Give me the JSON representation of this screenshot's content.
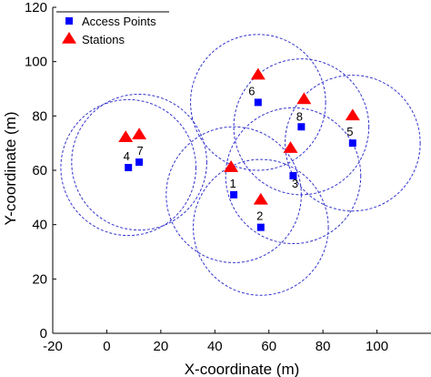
{
  "chart_data": {
    "type": "scatter",
    "xlabel": "X-coordinate (m)",
    "ylabel": "Y-coordinate (m)",
    "xlim": [
      -20,
      120
    ],
    "ylim": [
      0,
      120
    ],
    "xticks": [
      -20,
      0,
      20,
      40,
      60,
      80,
      100
    ],
    "yticks": [
      0,
      20,
      40,
      60,
      80,
      100,
      120
    ],
    "grid": false,
    "legend_position": "top-left",
    "colors": {
      "access_point": "#0000ff",
      "station": "#ff0000",
      "coverage": "#3333cc"
    },
    "coverage_radius": 25,
    "legend": [
      {
        "name": "Access Points",
        "marker": "square"
      },
      {
        "name": "Stations",
        "marker": "triangle"
      }
    ],
    "access_points": [
      {
        "label": "1",
        "x": 47,
        "y": 51
      },
      {
        "label": "2",
        "x": 57,
        "y": 39
      },
      {
        "label": "3",
        "x": 69,
        "y": 58
      },
      {
        "label": "4",
        "x": 8,
        "y": 61
      },
      {
        "label": "5",
        "x": 91,
        "y": 70
      },
      {
        "label": "6",
        "x": 56,
        "y": 85
      },
      {
        "label": "7",
        "x": 12,
        "y": 63
      },
      {
        "label": "8",
        "x": 72,
        "y": 76
      }
    ],
    "stations": [
      {
        "x": 46,
        "y": 61
      },
      {
        "x": 57,
        "y": 49
      },
      {
        "x": 68,
        "y": 68
      },
      {
        "x": 7,
        "y": 72
      },
      {
        "x": 12,
        "y": 73
      },
      {
        "x": 91,
        "y": 80
      },
      {
        "x": 56,
        "y": 95
      },
      {
        "x": 73,
        "y": 86
      }
    ]
  }
}
